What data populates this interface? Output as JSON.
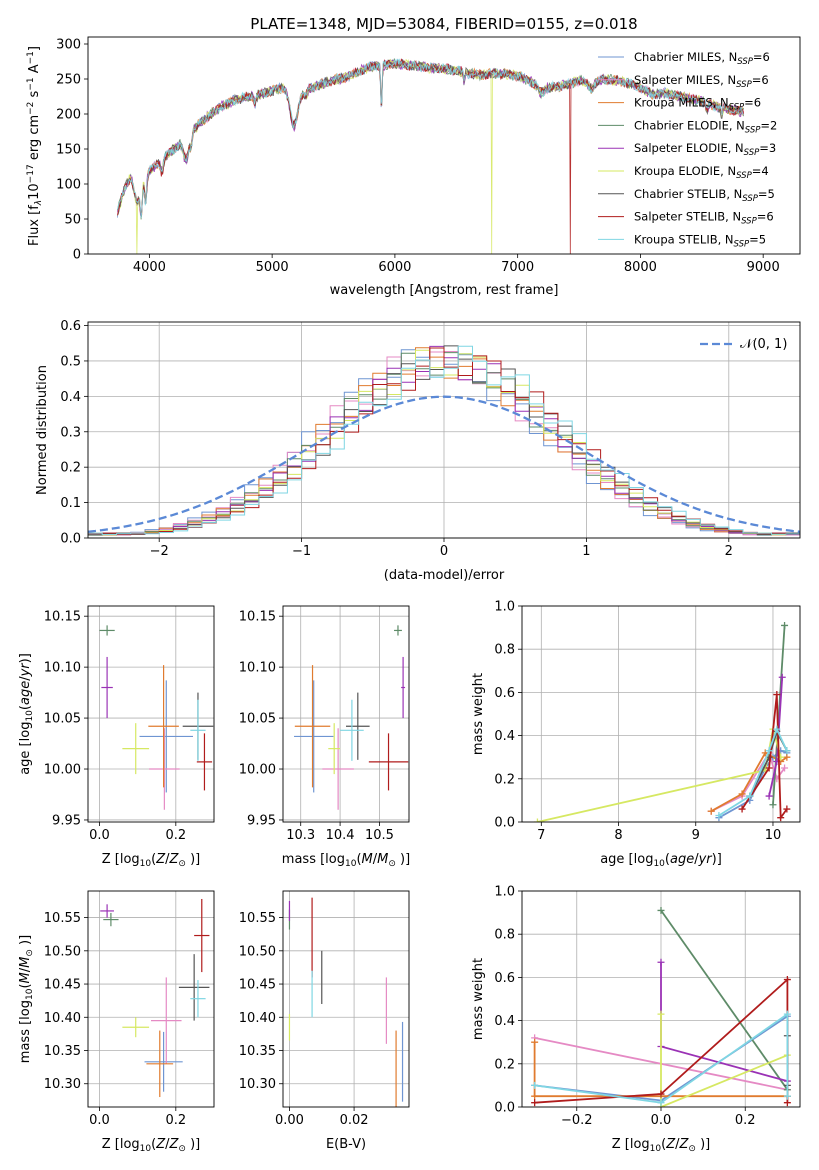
{
  "title": "PLATE=1348, MJD=53084, FIBERID=0155, z=0.018",
  "series": [
    {
      "name": "Chabrier MILES",
      "nssp": "6",
      "color": "#6f95d2"
    },
    {
      "name": "Salpeter MILES",
      "nssp": "6",
      "color": "#e58ac4"
    },
    {
      "name": "Kroupa MILES",
      "nssp": "6",
      "color": "#e07b2f"
    },
    {
      "name": "Chabrier ELODIE",
      "nssp": "2",
      "color": "#5e8b68"
    },
    {
      "name": "Salpeter ELODIE",
      "nssp": "3",
      "color": "#9a32b5"
    },
    {
      "name": "Kroupa ELODIE",
      "nssp": "4",
      "color": "#d6e862"
    },
    {
      "name": "Chabrier STELIB",
      "nssp": "5",
      "color": "#555555"
    },
    {
      "name": "Salpeter STELIB",
      "nssp": "6",
      "color": "#b01c1c"
    },
    {
      "name": "Kroupa STELIB",
      "nssp": "5",
      "color": "#7fd6e3"
    }
  ],
  "chart_data": [
    {
      "id": "spectrum",
      "type": "line",
      "xlabel": "wavelength [Angstrom, rest frame]",
      "ylabel_parts": [
        "Flux [f",
        "λ",
        "10",
        "−17",
        " erg cm",
        "−2",
        " s",
        "−1",
        " A",
        "−1",
        "]"
      ],
      "xlim": [
        3500,
        9300
      ],
      "ylim": [
        0,
        310
      ],
      "xticks": [
        4000,
        5000,
        6000,
        7000,
        8000,
        9000
      ],
      "yticks": [
        0,
        50,
        100,
        150,
        200,
        250,
        300
      ],
      "nssp_label": "SSP",
      "continuum": [
        [
          3740,
          60
        ],
        [
          3800,
          95
        ],
        [
          3850,
          110
        ],
        [
          3900,
          70
        ],
        [
          3950,
          105
        ],
        [
          4000,
          118
        ],
        [
          4100,
          135
        ],
        [
          4200,
          150
        ],
        [
          4300,
          165
        ],
        [
          4400,
          185
        ],
        [
          4500,
          200
        ],
        [
          4600,
          212
        ],
        [
          4700,
          220
        ],
        [
          4800,
          225
        ],
        [
          4900,
          228
        ],
        [
          5000,
          233
        ],
        [
          5100,
          238
        ],
        [
          5200,
          225
        ],
        [
          5300,
          235
        ],
        [
          5400,
          243
        ],
        [
          5500,
          248
        ],
        [
          5600,
          252
        ],
        [
          5700,
          260
        ],
        [
          5800,
          268
        ],
        [
          5900,
          270
        ],
        [
          6000,
          272
        ],
        [
          6100,
          270
        ],
        [
          6200,
          268
        ],
        [
          6300,
          266
        ],
        [
          6400,
          265
        ],
        [
          6500,
          262
        ],
        [
          6600,
          258
        ],
        [
          6700,
          256
        ],
        [
          6800,
          258
        ],
        [
          6900,
          257
        ],
        [
          7000,
          255
        ],
        [
          7100,
          247
        ],
        [
          7200,
          240
        ],
        [
          7300,
          238
        ],
        [
          7400,
          242
        ],
        [
          7500,
          248
        ],
        [
          7600,
          244
        ],
        [
          7700,
          250
        ],
        [
          7800,
          248
        ],
        [
          7900,
          244
        ],
        [
          8000,
          238
        ],
        [
          8100,
          228
        ],
        [
          8200,
          230
        ],
        [
          8300,
          226
        ],
        [
          8400,
          222
        ],
        [
          8500,
          218
        ],
        [
          8600,
          212
        ],
        [
          8700,
          208
        ],
        [
          8800,
          204
        ],
        [
          8840,
          204
        ]
      ],
      "absorption": [
        [
          3934,
          40,
          12
        ],
        [
          3969,
          35,
          12
        ],
        [
          4102,
          18,
          15
        ],
        [
          4300,
          30,
          30
        ],
        [
          4340,
          15,
          12
        ],
        [
          4861,
          12,
          12
        ],
        [
          5175,
          45,
          40
        ],
        [
          5270,
          8,
          15
        ],
        [
          5890,
          60,
          8
        ],
        [
          6563,
          12,
          8
        ],
        [
          7190,
          10,
          40
        ],
        [
          7600,
          8,
          30
        ],
        [
          8542,
          10,
          10
        ],
        [
          8662,
          10,
          10
        ]
      ],
      "glitches": [
        {
          "series": 5,
          "x": 3900
        },
        {
          "series": 5,
          "x": 6790
        },
        {
          "series": 7,
          "x": 7430
        }
      ]
    },
    {
      "id": "residuals",
      "type": "histogram",
      "xlabel": "(data-model)/error",
      "ylabel": "Normed distribution",
      "xlim": [
        -2.5,
        2.5
      ],
      "ylim": [
        0,
        0.61
      ],
      "xticks": [
        -2,
        -1,
        0,
        1,
        2
      ],
      "yticks": [
        0.0,
        0.1,
        0.2,
        0.3,
        0.4,
        0.5,
        0.6
      ],
      "legend": "𝒩(0, 1)",
      "gauss_color": "#5b89d6",
      "bin_width": 0.1,
      "peak": 0.5,
      "sigma": 0.78
    },
    {
      "id": "z-age",
      "type": "scatter",
      "xlabel": "Z [log10(Z/Z⊙)]",
      "ylabel": "age  [log10(age/yr)]",
      "xlim": [
        -0.03,
        0.3
      ],
      "ylim": [
        9.948,
        10.16
      ],
      "xticks": [
        0.0,
        0.2
      ],
      "yticks": [
        9.95,
        10.0,
        10.05,
        10.1,
        10.15
      ],
      "points": [
        {
          "s": 0,
          "x": 0.175,
          "y": 10.032,
          "ex": 0.07,
          "ey": 0.055
        },
        {
          "s": 1,
          "x": 0.17,
          "y": 10.0,
          "ex": 0.04,
          "ey": 0.04
        },
        {
          "s": 2,
          "x": 0.168,
          "y": 10.042,
          "ex": 0.04,
          "ey": 0.06
        },
        {
          "s": 3,
          "x": 0.02,
          "y": 10.136,
          "ex": 0.02,
          "ey": 0.005
        },
        {
          "s": 4,
          "x": 0.02,
          "y": 10.08,
          "ex": 0.015,
          "ey": 0.03
        },
        {
          "s": 5,
          "x": 0.095,
          "y": 10.02,
          "ex": 0.035,
          "ey": 0.025
        },
        {
          "s": 6,
          "x": 0.258,
          "y": 10.042,
          "ex": 0.04,
          "ey": 0.033
        },
        {
          "s": 7,
          "x": 0.275,
          "y": 10.007,
          "ex": 0.02,
          "ey": 0.028
        },
        {
          "s": 8,
          "x": 0.258,
          "y": 10.038,
          "ex": 0.02,
          "ey": 0.03
        }
      ]
    },
    {
      "id": "mass-age",
      "type": "scatter",
      "xlabel": "mass [log10(M/M⊙)]",
      "ylabel": "",
      "xlim": [
        10.255,
        10.575
      ],
      "ylim": [
        9.948,
        10.16
      ],
      "xticks": [
        10.3,
        10.4,
        10.5
      ],
      "yticks": [
        9.95,
        10.0,
        10.05,
        10.1,
        10.15
      ],
      "points": [
        {
          "s": 0,
          "x": 10.333,
          "y": 10.032,
          "ex": 0.05,
          "ey": 0.055
        },
        {
          "s": 1,
          "x": 10.395,
          "y": 10.0,
          "ex": 0.04,
          "ey": 0.04
        },
        {
          "s": 2,
          "x": 10.33,
          "y": 10.042,
          "ex": 0.045,
          "ey": 0.06
        },
        {
          "s": 3,
          "x": 10.547,
          "y": 10.136,
          "ex": 0.01,
          "ey": 0.005
        },
        {
          "s": 4,
          "x": 10.56,
          "y": 10.08,
          "ex": 0.005,
          "ey": 0.03
        },
        {
          "s": 5,
          "x": 10.385,
          "y": 10.02,
          "ex": 0.015,
          "ey": 0.025
        },
        {
          "s": 6,
          "x": 10.445,
          "y": 10.042,
          "ex": 0.03,
          "ey": 0.033
        },
        {
          "s": 7,
          "x": 10.523,
          "y": 10.007,
          "ex": 0.05,
          "ey": 0.028
        },
        {
          "s": 8,
          "x": 10.43,
          "y": 10.038,
          "ex": 0.03,
          "ey": 0.03
        }
      ]
    },
    {
      "id": "age-weight",
      "type": "line",
      "xlabel": "age  [log10(age/yr)]",
      "ylabel": "mass weight",
      "xlim": [
        6.75,
        10.35
      ],
      "ylim": [
        0,
        1.0
      ],
      "xticks": [
        7,
        8,
        9,
        10
      ],
      "yticks": [
        0.0,
        0.2,
        0.4,
        0.6,
        0.8,
        1.0
      ],
      "lines": [
        {
          "s": 0,
          "pts": [
            [
              9.3,
              0.02
            ],
            [
              9.7,
              0.1
            ],
            [
              9.9,
              0.25
            ],
            [
              10.0,
              0.3
            ],
            [
              10.1,
              0.33
            ],
            [
              10.18,
              0.32
            ]
          ]
        },
        {
          "s": 1,
          "pts": [
            [
              9.2,
              0.05
            ],
            [
              9.6,
              0.12
            ],
            [
              9.95,
              0.32
            ],
            [
              10.05,
              0.2
            ],
            [
              10.15,
              0.25
            ]
          ]
        },
        {
          "s": 2,
          "pts": [
            [
              9.2,
              0.05
            ],
            [
              9.6,
              0.13
            ],
            [
              9.9,
              0.32
            ],
            [
              10.1,
              0.28
            ],
            [
              10.18,
              0.3
            ]
          ]
        },
        {
          "s": 3,
          "pts": [
            [
              10.0,
              0.08
            ],
            [
              10.15,
              0.91
            ]
          ]
        },
        {
          "s": 4,
          "pts": [
            [
              9.95,
              0.12
            ],
            [
              10.05,
              0.28
            ],
            [
              10.12,
              0.67
            ]
          ]
        },
        {
          "s": 5,
          "pts": [
            [
              6.95,
              0.0
            ],
            [
              9.9,
              0.24
            ],
            [
              10.0,
              0.43
            ],
            [
              10.1,
              0.3
            ]
          ]
        },
        {
          "s": 6,
          "pts": [
            [
              9.7,
              0.12
            ],
            [
              9.95,
              0.3
            ],
            [
              10.05,
              0.42
            ],
            [
              10.18,
              0.33
            ]
          ]
        },
        {
          "s": 7,
          "pts": [
            [
              9.6,
              0.06
            ],
            [
              9.95,
              0.25
            ],
            [
              10.05,
              0.59
            ],
            [
              10.1,
              0.02
            ],
            [
              10.18,
              0.06
            ]
          ]
        },
        {
          "s": 8,
          "pts": [
            [
              9.3,
              0.03
            ],
            [
              9.7,
              0.12
            ],
            [
              9.95,
              0.33
            ],
            [
              10.05,
              0.43
            ],
            [
              10.18,
              0.33
            ]
          ]
        }
      ]
    },
    {
      "id": "z-mass",
      "type": "scatter",
      "xlabel": "Z [log10(Z/Z⊙)]",
      "ylabel": "mass [log10(M/M⊙)]",
      "xlim": [
        -0.03,
        0.3
      ],
      "ylim": [
        10.265,
        10.59
      ],
      "xticks": [
        0.0,
        0.2
      ],
      "yticks": [
        10.3,
        10.35,
        10.4,
        10.45,
        10.5,
        10.55
      ],
      "points": [
        {
          "s": 0,
          "x": 0.168,
          "y": 10.333,
          "ex": 0.05,
          "ey": 0.045
        },
        {
          "s": 1,
          "x": 0.175,
          "y": 10.395,
          "ex": 0.04,
          "ey": 0.065
        },
        {
          "s": 2,
          "x": 0.158,
          "y": 10.33,
          "ex": 0.035,
          "ey": 0.05
        },
        {
          "s": 3,
          "x": 0.03,
          "y": 10.547,
          "ex": 0.02,
          "ey": 0.01
        },
        {
          "s": 4,
          "x": 0.02,
          "y": 10.56,
          "ex": 0.018,
          "ey": 0.01
        },
        {
          "s": 5,
          "x": 0.095,
          "y": 10.385,
          "ex": 0.035,
          "ey": 0.015
        },
        {
          "s": 6,
          "x": 0.248,
          "y": 10.445,
          "ex": 0.04,
          "ey": 0.05
        },
        {
          "s": 7,
          "x": 0.268,
          "y": 10.523,
          "ex": 0.02,
          "ey": 0.055
        },
        {
          "s": 8,
          "x": 0.258,
          "y": 10.428,
          "ex": 0.02,
          "ey": 0.028
        }
      ]
    },
    {
      "id": "ebv-mass",
      "type": "scatter",
      "xlabel": "E(B-V)",
      "ylabel": "",
      "xlim": [
        -0.002,
        0.037
      ],
      "ylim": [
        10.265,
        10.59
      ],
      "xticks": [
        0.0,
        0.02
      ],
      "yticks": [
        10.3,
        10.35,
        10.4,
        10.45,
        10.5,
        10.55
      ],
      "points": [
        {
          "s": 0,
          "x": 0.035,
          "y": 10.333,
          "ex": 0.0,
          "ey": 0.06
        },
        {
          "s": 1,
          "x": 0.03,
          "y": 10.41,
          "ex": 0.0,
          "ey": 0.05
        },
        {
          "s": 2,
          "x": 0.033,
          "y": 10.31,
          "ex": 0.0,
          "ey": 0.07
        },
        {
          "s": 3,
          "x": 0.0,
          "y": 10.547,
          "ex": 0.0,
          "ey": 0.015
        },
        {
          "s": 4,
          "x": 0.0,
          "y": 10.56,
          "ex": 0.0,
          "ey": 0.015
        },
        {
          "s": 5,
          "x": 0.0,
          "y": 10.385,
          "ex": 0.0,
          "ey": 0.02
        },
        {
          "s": 6,
          "x": 0.01,
          "y": 10.46,
          "ex": 0.0,
          "ey": 0.04
        },
        {
          "s": 7,
          "x": 0.007,
          "y": 10.52,
          "ex": 0.0,
          "ey": 0.06
        },
        {
          "s": 8,
          "x": 0.007,
          "y": 10.435,
          "ex": 0.0,
          "ey": 0.035
        }
      ]
    },
    {
      "id": "z-weight",
      "type": "line",
      "xlabel": "Z [log10(Z/Z⊙)]",
      "ylabel": "mass weight",
      "xlim": [
        -0.33,
        0.33
      ],
      "ylim": [
        0,
        1.0
      ],
      "xticks": [
        -0.2,
        0.0,
        0.2
      ],
      "yticks": [
        0.0,
        0.2,
        0.4,
        0.6,
        0.8,
        1.0
      ],
      "lines": [
        {
          "s": 0,
          "pts": [
            [
              -0.3,
              0.1
            ],
            [
              0.0,
              0.03
            ],
            [
              0.3,
              0.42
            ],
            [
              0.3,
              0.05
            ]
          ]
        },
        {
          "s": 1,
          "pts": [
            [
              -0.3,
              0.32
            ],
            [
              0.3,
              0.08
            ]
          ]
        },
        {
          "s": 2,
          "pts": [
            [
              -0.3,
              0.3
            ],
            [
              -0.3,
              0.05
            ],
            [
              0.0,
              0.05
            ],
            [
              0.3,
              0.05
            ]
          ]
        },
        {
          "s": 3,
          "pts": [
            [
              0.0,
              0.91
            ],
            [
              0.3,
              0.08
            ]
          ]
        },
        {
          "s": 4,
          "pts": [
            [
              0.0,
              0.67
            ],
            [
              0.0,
              0.28
            ],
            [
              0.3,
              0.12
            ]
          ]
        },
        {
          "s": 5,
          "pts": [
            [
              0.0,
              0.43
            ],
            [
              0.0,
              0.0
            ],
            [
              0.3,
              0.24
            ]
          ]
        },
        {
          "s": 6,
          "pts": [
            [
              0.3,
              0.33
            ],
            [
              0.3,
              0.1
            ]
          ]
        },
        {
          "s": 7,
          "pts": [
            [
              -0.3,
              0.02
            ],
            [
              0.0,
              0.06
            ],
            [
              0.3,
              0.59
            ],
            [
              0.3,
              0.02
            ]
          ]
        },
        {
          "s": 8,
          "pts": [
            [
              -0.3,
              0.1
            ],
            [
              0.0,
              0.02
            ],
            [
              0.3,
              0.43
            ],
            [
              0.3,
              0.05
            ]
          ]
        }
      ]
    }
  ]
}
